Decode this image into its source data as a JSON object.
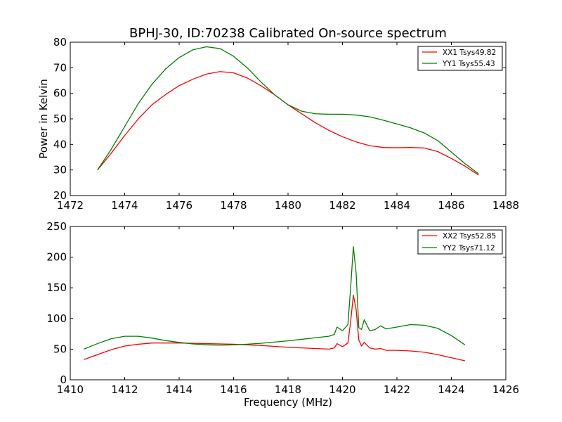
{
  "chart_data": [
    {
      "type": "line",
      "title": "BPHJ-30, ID:70238 Calibrated On-source spectrum",
      "xlabel": "",
      "ylabel": "Power in Kelvin",
      "xlim": [
        1472,
        1488
      ],
      "ylim": [
        20,
        80
      ],
      "xticks": [
        1472,
        1474,
        1476,
        1478,
        1480,
        1482,
        1484,
        1486,
        1488
      ],
      "yticks": [
        20,
        30,
        40,
        50,
        60,
        70,
        80
      ],
      "grid": false,
      "legend": "top-right",
      "series": [
        {
          "name": "XX1 Tsys49.82",
          "color": "#ff0000",
          "x": [
            1473.0,
            1473.5,
            1474.0,
            1474.5,
            1475.0,
            1475.5,
            1476.0,
            1476.5,
            1477.0,
            1477.5,
            1478.0,
            1478.5,
            1479.0,
            1479.5,
            1480.0,
            1480.5,
            1481.0,
            1481.5,
            1482.0,
            1482.5,
            1483.0,
            1483.5,
            1484.0,
            1484.5,
            1485.0,
            1485.5,
            1486.0,
            1486.5,
            1487.0
          ],
          "y": [
            30.0,
            36.5,
            43.5,
            50.0,
            55.5,
            59.5,
            63.0,
            65.5,
            67.5,
            68.5,
            68.0,
            66.0,
            63.0,
            59.5,
            55.5,
            52.0,
            48.5,
            45.5,
            43.0,
            41.0,
            39.5,
            38.8,
            38.7,
            38.8,
            38.6,
            37.2,
            34.5,
            31.5,
            28.0
          ]
        },
        {
          "name": "YY1 Tsys55.43",
          "color": "#008000",
          "x": [
            1473.0,
            1473.5,
            1474.0,
            1474.5,
            1475.0,
            1475.5,
            1476.0,
            1476.5,
            1477.0,
            1477.5,
            1478.0,
            1478.5,
            1479.0,
            1479.5,
            1480.0,
            1480.5,
            1481.0,
            1481.5,
            1482.0,
            1482.5,
            1483.0,
            1483.5,
            1484.0,
            1484.5,
            1485.0,
            1485.5,
            1486.0,
            1486.5,
            1487.0
          ],
          "y": [
            30.0,
            38.0,
            47.0,
            56.0,
            63.5,
            69.5,
            74.0,
            77.0,
            78.2,
            77.5,
            74.5,
            70.0,
            64.5,
            59.5,
            55.5,
            53.0,
            52.0,
            51.8,
            51.8,
            51.5,
            50.8,
            49.5,
            48.0,
            46.5,
            44.5,
            41.5,
            37.0,
            32.5,
            28.5
          ]
        }
      ]
    },
    {
      "type": "line",
      "title": "",
      "xlabel": "Frequency (MHz)",
      "ylabel": "",
      "xlim": [
        1410,
        1426
      ],
      "ylim": [
        0,
        250
      ],
      "xticks": [
        1410,
        1412,
        1414,
        1416,
        1418,
        1420,
        1422,
        1424,
        1426
      ],
      "yticks": [
        0,
        50,
        100,
        150,
        200,
        250
      ],
      "grid": false,
      "legend": "top-right",
      "series": [
        {
          "name": "XX2 Tsys52.85",
          "color": "#ff0000",
          "x": [
            1410.5,
            1411.0,
            1411.5,
            1412.0,
            1412.5,
            1413.0,
            1413.5,
            1414.0,
            1414.5,
            1415.0,
            1415.5,
            1416.0,
            1416.5,
            1417.0,
            1417.5,
            1418.0,
            1418.5,
            1419.0,
            1419.5,
            1419.7,
            1419.8,
            1420.0,
            1420.2,
            1420.3,
            1420.4,
            1420.5,
            1420.6,
            1420.7,
            1420.8,
            1421.0,
            1421.2,
            1421.4,
            1421.6,
            1422.0,
            1422.5,
            1423.0,
            1423.5,
            1424.0,
            1424.5
          ],
          "y": [
            33,
            41,
            49,
            55,
            58,
            60,
            60,
            60,
            59.5,
            59,
            58.5,
            58,
            57,
            56,
            54.5,
            53,
            52,
            51,
            50,
            52,
            59,
            54,
            60,
            95,
            138,
            115,
            65,
            55,
            61,
            52,
            50,
            51,
            48,
            48,
            47,
            45,
            41,
            36,
            31
          ]
        },
        {
          "name": "YY2 Tsys71.12",
          "color": "#008000",
          "x": [
            1410.5,
            1411.0,
            1411.5,
            1412.0,
            1412.5,
            1413.0,
            1413.5,
            1414.0,
            1414.5,
            1415.0,
            1415.5,
            1416.0,
            1416.5,
            1417.0,
            1417.5,
            1418.0,
            1418.5,
            1419.0,
            1419.5,
            1419.7,
            1419.8,
            1420.0,
            1420.2,
            1420.3,
            1420.4,
            1420.5,
            1420.6,
            1420.7,
            1420.8,
            1421.0,
            1421.2,
            1421.4,
            1421.6,
            1422.0,
            1422.5,
            1423.0,
            1423.5,
            1424.0,
            1424.5
          ],
          "y": [
            50,
            59,
            67,
            71,
            71,
            68,
            64,
            61,
            58.5,
            57,
            56.5,
            57,
            58,
            59.5,
            61.5,
            63.5,
            66,
            68.5,
            71,
            74,
            86,
            80,
            90,
            150,
            217,
            175,
            85,
            82,
            98,
            80,
            82,
            88,
            83,
            86,
            90,
            89,
            84,
            72,
            57
          ]
        }
      ]
    }
  ]
}
